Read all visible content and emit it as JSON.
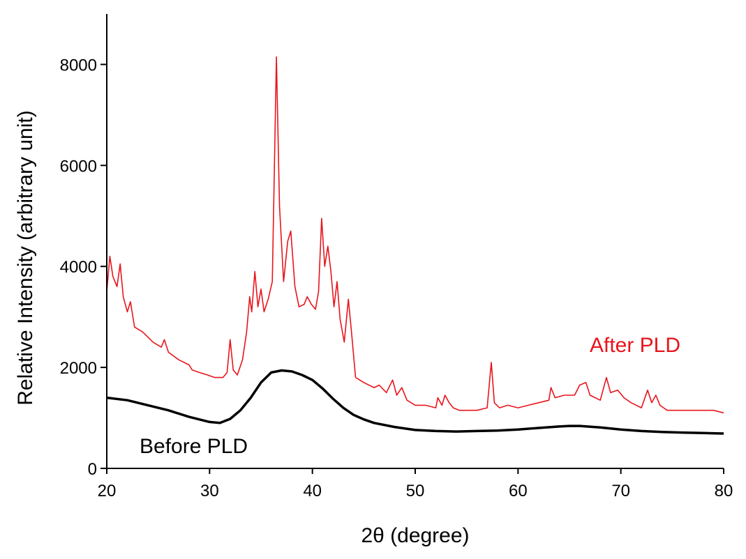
{
  "chart_data": {
    "type": "line",
    "xlabel": "2θ (degree)",
    "ylabel": "Relative Intensity (arbitrary unit)",
    "xlim": [
      20,
      80
    ],
    "xticks": [
      20,
      30,
      40,
      50,
      60,
      70,
      80
    ],
    "ylim": [
      0,
      9000
    ],
    "yticks": [
      0,
      2000,
      4000,
      6000,
      8000
    ],
    "series": [
      {
        "name": "After PLD",
        "color": "#e8141c",
        "x": [
          20,
          20.3,
          20.6,
          21,
          21.3,
          21.6,
          22,
          22.3,
          22.7,
          23.5,
          24.5,
          25.3,
          25.6,
          26,
          27,
          28,
          28.3,
          29,
          29.8,
          30.5,
          31.3,
          31.7,
          32,
          32.3,
          32.7,
          33.2,
          33.6,
          33.9,
          34.1,
          34.4,
          34.7,
          35,
          35.3,
          35.7,
          36.1,
          36.5,
          36.8,
          37.2,
          37.6,
          37.9,
          38.3,
          38.7,
          39.2,
          39.5,
          39.9,
          40.3,
          40.6,
          40.9,
          41.2,
          41.5,
          41.8,
          42.1,
          42.4,
          42.7,
          43.1,
          43.5,
          43.8,
          44.2,
          45,
          46,
          46.5,
          47.2,
          47.8,
          48.2,
          48.7,
          49.2,
          50,
          51,
          52,
          52.2,
          52.6,
          52.9,
          53.3,
          53.7,
          54.3,
          55,
          56,
          57,
          57.4,
          57.7,
          58.2,
          59,
          60,
          61,
          62,
          63,
          63.2,
          63.6,
          64.5,
          65.5,
          66,
          66.6,
          67,
          68,
          68.6,
          69,
          69.7,
          70.3,
          71,
          72,
          72.6,
          73,
          73.4,
          73.8,
          74.5,
          75.5,
          76.5,
          78,
          79,
          80
        ],
        "values": [
          3500,
          4200,
          3800,
          3600,
          4050,
          3400,
          3100,
          3300,
          2800,
          2700,
          2500,
          2400,
          2550,
          2300,
          2150,
          2050,
          1950,
          1900,
          1850,
          1800,
          1800,
          1900,
          2550,
          1950,
          1850,
          2150,
          2700,
          3400,
          3100,
          3900,
          3200,
          3550,
          3100,
          3350,
          3700,
          8150,
          5200,
          3700,
          4500,
          4700,
          3600,
          3200,
          3250,
          3400,
          3250,
          3150,
          3500,
          4950,
          4000,
          4400,
          3900,
          3200,
          3700,
          2950,
          2500,
          3350,
          2700,
          1800,
          1700,
          1600,
          1650,
          1500,
          1750,
          1450,
          1600,
          1350,
          1250,
          1250,
          1200,
          1400,
          1250,
          1450,
          1300,
          1200,
          1150,
          1150,
          1150,
          1200,
          2100,
          1300,
          1200,
          1250,
          1200,
          1250,
          1300,
          1350,
          1600,
          1400,
          1450,
          1450,
          1650,
          1700,
          1450,
          1350,
          1800,
          1500,
          1550,
          1400,
          1300,
          1200,
          1550,
          1300,
          1450,
          1250,
          1150,
          1150,
          1150,
          1150,
          1150,
          1100
        ]
      },
      {
        "name": "Before PLD",
        "color": "#000000",
        "x": [
          20,
          22,
          24,
          26,
          28,
          30,
          31,
          32,
          33,
          34,
          35,
          36,
          37,
          38,
          39,
          40,
          41,
          42,
          43,
          44,
          45,
          46,
          48,
          50,
          52,
          54,
          56,
          58,
          60,
          62,
          64,
          65,
          66,
          68,
          70,
          72,
          74,
          76,
          78,
          80
        ],
        "values": [
          1400,
          1350,
          1250,
          1150,
          1020,
          920,
          900,
          980,
          1150,
          1400,
          1700,
          1900,
          1940,
          1920,
          1850,
          1750,
          1580,
          1380,
          1200,
          1060,
          970,
          900,
          820,
          760,
          740,
          730,
          740,
          750,
          770,
          800,
          830,
          840,
          840,
          810,
          770,
          740,
          720,
          710,
          700,
          690
        ]
      }
    ]
  }
}
